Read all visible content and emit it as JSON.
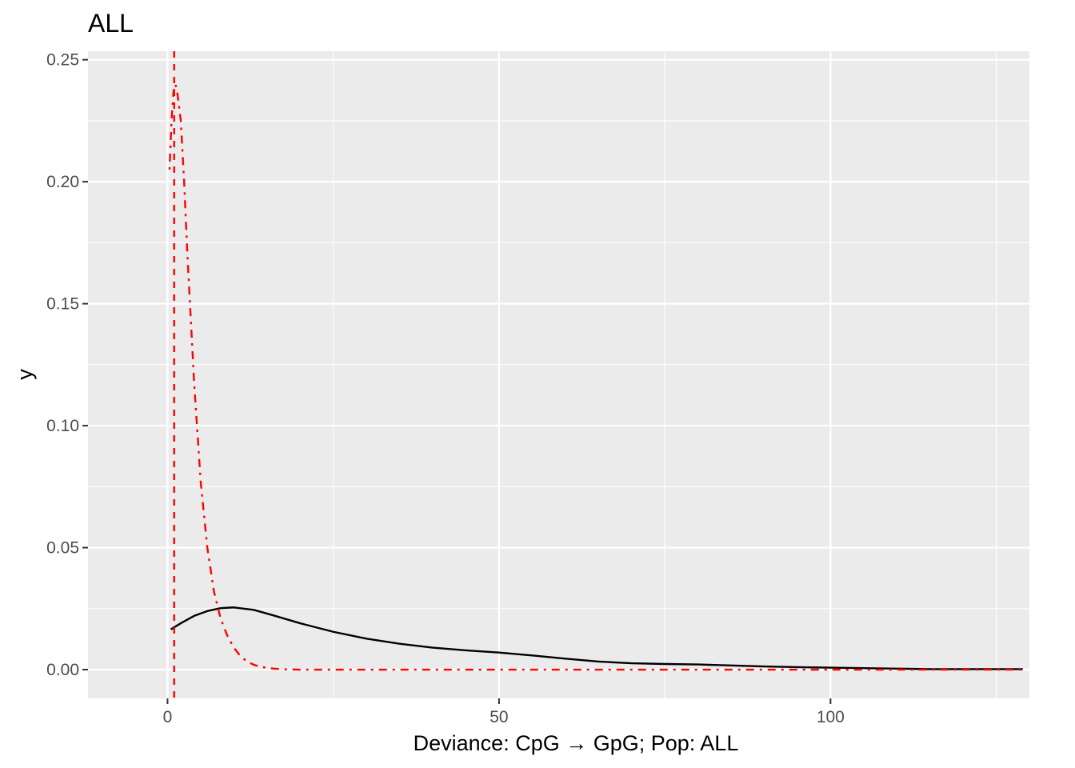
{
  "chart_data": {
    "type": "line",
    "title": "ALL",
    "xlabel": "Deviance: CpG → GpG; Pop: ALL",
    "ylabel": "y",
    "xlim": [
      -12,
      130
    ],
    "ylim": [
      -0.0118,
      0.2535
    ],
    "x_ticks": [
      0,
      50,
      100
    ],
    "x_tick_labels": [
      "0",
      "50",
      "100"
    ],
    "x_minor_ticks": [
      25,
      75,
      125
    ],
    "y_ticks": [
      0.0,
      0.05,
      0.1,
      0.15,
      0.2,
      0.25
    ],
    "y_tick_labels": [
      "0.00",
      "0.05",
      "0.10",
      "0.15",
      "0.20",
      "0.25"
    ],
    "y_minor_ticks": [
      0.025,
      0.075,
      0.125,
      0.175,
      0.225
    ],
    "grid": true,
    "panel_background": "#ebebeb",
    "series": [
      {
        "style": "solid",
        "color": "#000000",
        "x": [
          0.5,
          2,
          4,
          6,
          8,
          10,
          13,
          16,
          20,
          25,
          30,
          35,
          40,
          45,
          50,
          55,
          60,
          65,
          70,
          75,
          80,
          85,
          90,
          95,
          100,
          105,
          110,
          115,
          120,
          125,
          129
        ],
        "y": [
          0.0165,
          0.019,
          0.022,
          0.024,
          0.0252,
          0.0255,
          0.0245,
          0.0222,
          0.019,
          0.0155,
          0.0127,
          0.0106,
          0.009,
          0.0079,
          0.007,
          0.0058,
          0.0045,
          0.0033,
          0.0026,
          0.0023,
          0.0021,
          0.0017,
          0.0013,
          0.001,
          0.0008,
          0.0006,
          0.0004,
          0.0002,
          0.0002,
          0.0002,
          0.0002
        ]
      },
      {
        "style": "dotdash",
        "color": "#ff0000",
        "x": [
          0.3,
          0.6,
          0.9,
          1.2,
          1.5,
          2,
          2.5,
          3,
          4,
          5,
          6,
          7,
          8,
          9,
          10,
          11,
          12,
          13,
          14,
          16,
          18,
          20,
          30,
          50,
          80,
          129
        ],
        "y": [
          0.205,
          0.225,
          0.237,
          0.24,
          0.236,
          0.225,
          0.2,
          0.17,
          0.118,
          0.077,
          0.05,
          0.032,
          0.021,
          0.014,
          0.009,
          0.0055,
          0.0033,
          0.002,
          0.0011,
          0.0004,
          0.0001,
          0.0,
          0.0,
          0.0,
          0.0,
          0.0
        ]
      },
      {
        "style": "dashed",
        "color": "#ff0000",
        "vline_x": 1.0
      }
    ]
  }
}
